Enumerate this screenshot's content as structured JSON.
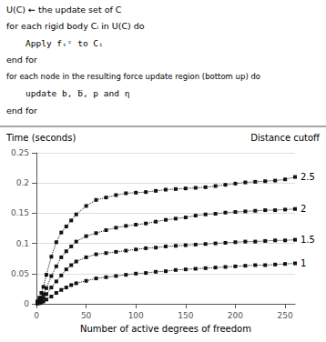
{
  "chart_data": {
    "type": "line",
    "ylabel": "Time (seconds)",
    "xlabel": "Number of active degrees of freedom",
    "annotations": [
      "U(C) ← the update set of C",
      "for each rigid body Cᵢ in U(C) do",
      "Apply fᵢᶜ to Cᵢ",
      "end for",
      "for each node in the resulting force update region (bottom up) do",
      "update b, ̅b, p and η",
      "end for"
    ],
    "legend_title": "Distance cutoff",
    "xlim": [
      0,
      260
    ],
    "xticks": [
      0,
      50,
      100,
      150,
      200,
      250
    ],
    "ylim": [
      0,
      0.25
    ],
    "yticks": [
      0,
      0.05,
      0.1,
      0.15,
      0.2,
      0.25
    ],
    "grid": true,
    "marker": "square",
    "line_style": "dotted",
    "x": [
      1,
      3,
      5,
      7,
      10,
      15,
      20,
      25,
      30,
      35,
      40,
      50,
      60,
      70,
      80,
      90,
      100,
      110,
      120,
      130,
      140,
      150,
      160,
      170,
      180,
      190,
      200,
      210,
      220,
      230,
      240,
      250,
      260
    ],
    "series": [
      {
        "name": "2.5",
        "color": "#111111",
        "values": [
          0.004,
          0.01,
          0.018,
          0.028,
          0.048,
          0.078,
          0.102,
          0.118,
          0.128,
          0.138,
          0.148,
          0.162,
          0.172,
          0.176,
          0.18,
          0.183,
          0.184,
          0.185,
          0.187,
          0.189,
          0.19,
          0.191,
          0.192,
          0.193,
          0.195,
          0.197,
          0.199,
          0.201,
          0.202,
          0.203,
          0.204,
          0.206,
          0.21
        ]
      },
      {
        "name": "2",
        "color": "#111111",
        "values": [
          0.002,
          0.005,
          0.01,
          0.016,
          0.026,
          0.046,
          0.062,
          0.077,
          0.087,
          0.095,
          0.103,
          0.112,
          0.117,
          0.122,
          0.126,
          0.129,
          0.131,
          0.133,
          0.136,
          0.139,
          0.141,
          0.143,
          0.146,
          0.148,
          0.149,
          0.151,
          0.152,
          0.153,
          0.154,
          0.155,
          0.155,
          0.156,
          0.157
        ]
      },
      {
        "name": "1.5",
        "color": "#111111",
        "values": [
          0.001,
          0.003,
          0.006,
          0.01,
          0.016,
          0.027,
          0.037,
          0.047,
          0.057,
          0.064,
          0.07,
          0.077,
          0.082,
          0.084,
          0.086,
          0.088,
          0.09,
          0.092,
          0.093,
          0.095,
          0.096,
          0.097,
          0.098,
          0.099,
          0.1,
          0.101,
          0.102,
          0.103,
          0.103,
          0.104,
          0.105,
          0.105,
          0.106
        ]
      },
      {
        "name": "1",
        "color": "#111111",
        "values": [
          0.0005,
          0.001,
          0.002,
          0.004,
          0.007,
          0.012,
          0.018,
          0.023,
          0.027,
          0.031,
          0.034,
          0.038,
          0.042,
          0.044,
          0.046,
          0.048,
          0.05,
          0.051,
          0.053,
          0.054,
          0.056,
          0.057,
          0.058,
          0.059,
          0.06,
          0.061,
          0.062,
          0.063,
          0.064,
          0.064,
          0.065,
          0.066,
          0.067
        ]
      }
    ]
  }
}
